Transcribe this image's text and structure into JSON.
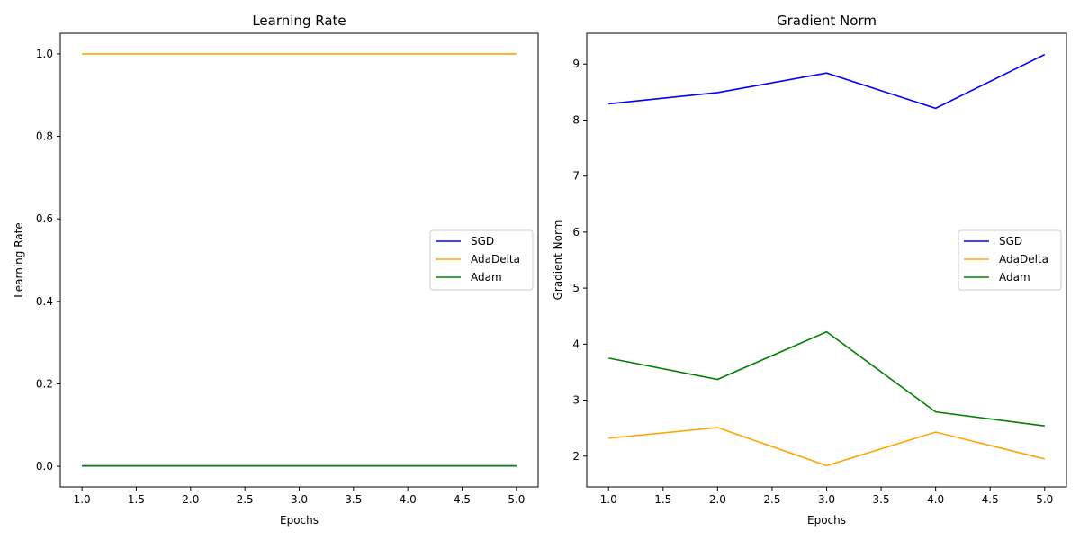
{
  "colors": {
    "SGD": "#0000ff",
    "AdaDelta": "#ffa500",
    "Adam": "#008000"
  },
  "chart_data": [
    {
      "type": "line",
      "title": "Learning Rate",
      "xlabel": "Epochs",
      "ylabel": "Learning Rate",
      "x": [
        1,
        2,
        3,
        4,
        5
      ],
      "xlim": [
        0.8,
        5.2
      ],
      "ylim": [
        -0.05,
        1.05
      ],
      "xticks": [
        "1.0",
        "1.5",
        "2.0",
        "2.5",
        "3.0",
        "3.5",
        "4.0",
        "4.5",
        "5.0"
      ],
      "yticks": [
        "0.0",
        "0.2",
        "0.4",
        "0.6",
        "0.8",
        "1.0"
      ],
      "legend": "center-right",
      "grid": false,
      "series": [
        {
          "name": "SGD",
          "color": "#0000ff",
          "values": [
            0.001,
            0.001,
            0.001,
            0.001,
            0.001
          ]
        },
        {
          "name": "AdaDelta",
          "color": "#ffa500",
          "values": [
            1.0,
            1.0,
            1.0,
            1.0,
            1.0
          ]
        },
        {
          "name": "Adam",
          "color": "#008000",
          "values": [
            0.001,
            0.001,
            0.001,
            0.001,
            0.001
          ]
        }
      ]
    },
    {
      "type": "line",
      "title": "Gradient Norm",
      "xlabel": "Epochs",
      "ylabel": "Gradient Norm",
      "x": [
        1,
        2,
        3,
        4,
        5
      ],
      "xlim": [
        0.8,
        5.2
      ],
      "ylim": [
        1.45,
        9.55
      ],
      "xticks": [
        "1.0",
        "1.5",
        "2.0",
        "2.5",
        "3.0",
        "3.5",
        "4.0",
        "4.5",
        "5.0"
      ],
      "yticks": [
        "2",
        "3",
        "4",
        "5",
        "6",
        "7",
        "8",
        "9"
      ],
      "legend": "center-right",
      "grid": false,
      "series": [
        {
          "name": "SGD",
          "color": "#0000ff",
          "values": [
            8.29,
            8.49,
            8.84,
            8.21,
            9.17
          ]
        },
        {
          "name": "AdaDelta",
          "color": "#ffa500",
          "values": [
            2.32,
            2.51,
            1.83,
            2.43,
            1.95
          ]
        },
        {
          "name": "Adam",
          "color": "#008000",
          "values": [
            3.75,
            3.37,
            4.22,
            2.79,
            2.54
          ]
        }
      ]
    }
  ]
}
